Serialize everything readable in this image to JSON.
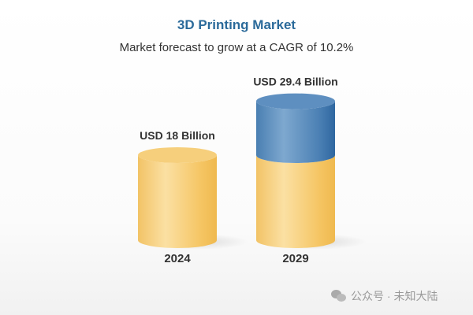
{
  "chart_data": {
    "type": "bar",
    "style": "3d-cylinder",
    "title": "3D Printing Market",
    "subtitle": "Market forecast to grow at a CAGR of 10.2%",
    "categories": [
      "2024",
      "2029"
    ],
    "values": [
      18,
      29.4
    ],
    "unit": "USD Billion",
    "data_labels": [
      "USD 18 Billion",
      "USD 29.4 Billion"
    ],
    "highlight_growth": true,
    "colors": {
      "base": "#f5c96a",
      "growth": "#4a80b5",
      "title": "#2b6a9a"
    },
    "grid": false,
    "legend": "none"
  },
  "watermark": "公众号 · 未知大陆"
}
